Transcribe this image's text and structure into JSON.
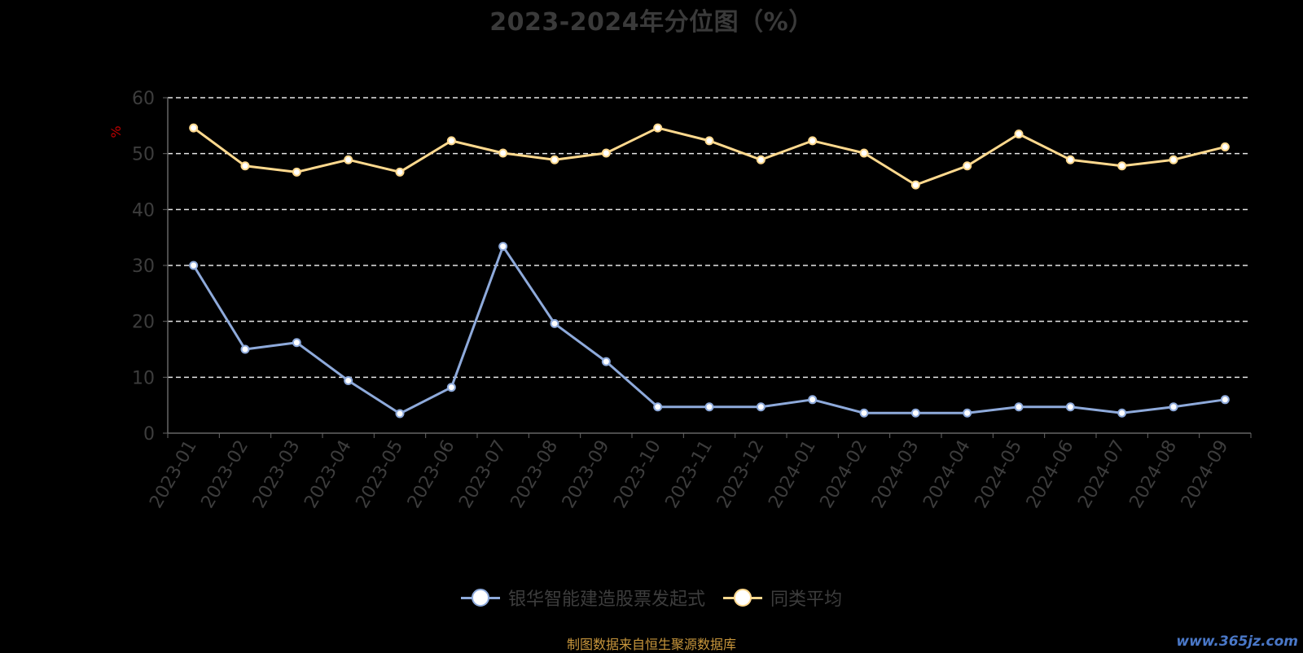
{
  "chart_data": {
    "type": "line",
    "title": "2023-2024年分位图（%）",
    "ylabel": "%",
    "xlabel": "",
    "ylim": [
      0,
      60
    ],
    "yticks": [
      "0",
      "10",
      "20",
      "30",
      "40",
      "50",
      "60"
    ],
    "grid": true,
    "legend_position": "bottom",
    "categories": [
      "2023-01",
      "2023-02",
      "2023-03",
      "2023-04",
      "2023-05",
      "2023-06",
      "2023-07",
      "2023-08",
      "2023-09",
      "2023-10",
      "2023-11",
      "2023-12",
      "2024-01",
      "2024-02",
      "2024-03",
      "2024-04",
      "2024-05",
      "2024-06",
      "2024-07",
      "2024-08",
      "2024-09"
    ],
    "series": [
      {
        "name": "银华智能建造股票发起式",
        "color": "#8eaadb",
        "values": [
          30.0,
          15.0,
          16.2,
          9.4,
          3.5,
          8.2,
          33.4,
          19.6,
          12.8,
          4.7,
          4.7,
          4.7,
          6.0,
          3.6,
          3.6,
          3.6,
          4.7,
          4.7,
          3.6,
          4.7,
          6.0
        ]
      },
      {
        "name": "同类平均",
        "color": "#ffd98e",
        "values": [
          54.6,
          47.8,
          46.7,
          48.9,
          46.7,
          52.3,
          50.1,
          48.9,
          50.1,
          54.6,
          52.3,
          48.9,
          52.3,
          50.1,
          44.4,
          47.8,
          53.5,
          48.9,
          47.8,
          48.9,
          51.2
        ]
      }
    ]
  },
  "footer": {
    "source": "制图数据来自恒生聚源数据库",
    "watermark": "www.365jz.com"
  }
}
